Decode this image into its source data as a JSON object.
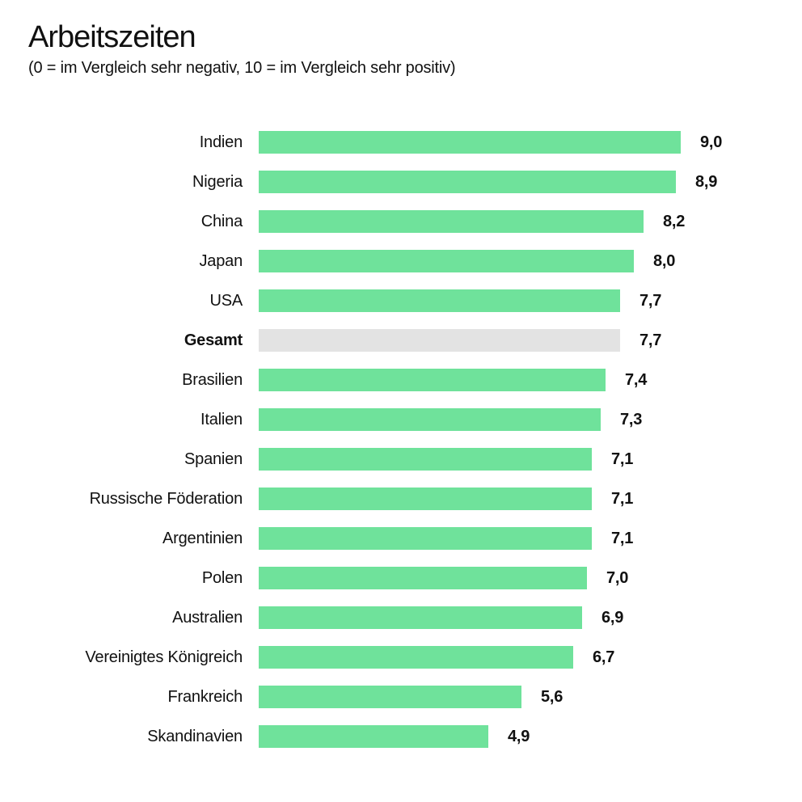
{
  "colors": {
    "bar": "#6FE29B",
    "highlight_bar": "#E3E3E3",
    "text": "#111111",
    "background": "#FFFFFF"
  },
  "chart_data": {
    "type": "bar",
    "orientation": "horizontal",
    "title": "Arbeitszeiten",
    "subtitle": "(0 = im Vergleich sehr negativ, 10 = im Vergleich sehr positiv)",
    "xlim": [
      0,
      10
    ],
    "grid": false,
    "legend": false,
    "value_label_position": "right-of-bar",
    "categories": [
      "Indien",
      "Nigeria",
      "China",
      "Japan",
      "USA",
      "Gesamt",
      "Brasilien",
      "Italien",
      "Spanien",
      "Russische Föderation",
      "Argentinien",
      "Polen",
      "Australien",
      "Vereinigtes Königreich",
      "Frankreich",
      "Skandinavien"
    ],
    "values": [
      9.0,
      8.9,
      8.2,
      8.0,
      7.7,
      7.7,
      7.4,
      7.3,
      7.1,
      7.1,
      7.1,
      7.0,
      6.9,
      6.7,
      5.6,
      4.9
    ],
    "value_labels": [
      "9,0",
      "8,9",
      "8,2",
      "8,0",
      "7,7",
      "7,7",
      "7,4",
      "7,3",
      "7,1",
      "7,1",
      "7,1",
      "7,0",
      "6,9",
      "6,7",
      "5,6",
      "4,9"
    ],
    "highlight_category": "Gesamt"
  }
}
